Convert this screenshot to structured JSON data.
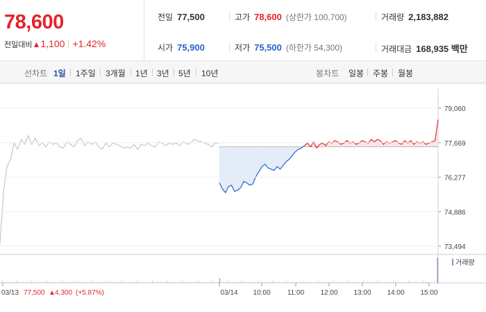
{
  "quote": {
    "price": "78,600",
    "compare_label": "전일대비",
    "change_arrow": "▲",
    "change": "1,100",
    "change_pct": "+1.42%"
  },
  "info": {
    "prev": {
      "label": "전일",
      "value": "77,500"
    },
    "high": {
      "label": "고가",
      "value": "78,600",
      "sub": "(상한가 100,700)"
    },
    "volume": {
      "label": "거래량",
      "value": "2,183,882"
    },
    "open": {
      "label": "시가",
      "value": "75,900"
    },
    "low": {
      "label": "저가",
      "value": "75,500",
      "sub": "(하한가 54,300)"
    },
    "amount": {
      "label": "거래대금",
      "value": "168,935 백만"
    }
  },
  "tabs": {
    "line_label": "선차트",
    "line": [
      "1일",
      "1주일",
      "3개월",
      "1년",
      "3년",
      "5년",
      "10년"
    ],
    "line_active": "1일",
    "candle_label": "봉차트",
    "candle": [
      "일봉",
      "주봉",
      "월봉"
    ]
  },
  "colors": {
    "up": "#e3242b",
    "down": "#2b63c9",
    "prev_day": "#bdbdbd",
    "fill_down": "#e3ecf8",
    "fill_up": "#fbe6e6"
  },
  "chart_data": {
    "type": "line",
    "ylim": [
      73494,
      79060
    ],
    "y_ticks": [
      "79,060",
      "77,669",
      "76,277",
      "74,886",
      "73,494"
    ],
    "baseline": 77500,
    "x_ticks": [
      "03/14",
      "10:00",
      "11:00",
      "12:00",
      "13:00",
      "14:00",
      "15:00"
    ],
    "legend": "거래량",
    "prev_day_label": "03/13",
    "prev_day_summary": {
      "close": "77,500",
      "arrow": "▲",
      "change": "4,300",
      "change_pct": "(+5.87%)"
    },
    "series": [
      {
        "segment": "prev_day",
        "values": [
          73600,
          75700,
          76700,
          77000,
          77650,
          77400,
          77800,
          77600,
          77950,
          77600,
          77850,
          77550,
          77650,
          77500,
          77700,
          77600,
          77650,
          77500,
          77450,
          77700,
          77600,
          77500,
          77750,
          77850,
          77550,
          77700,
          77600,
          77700,
          77500,
          77400,
          77650,
          77500,
          77650,
          77600,
          77550,
          77450,
          77500,
          77450,
          77600,
          77400,
          77600,
          77550,
          77650,
          77550,
          77500,
          77700,
          77650,
          77550,
          77650,
          77600,
          77650,
          77550,
          77700,
          77600,
          77650,
          77800,
          77750,
          77700,
          77650,
          77600,
          77500,
          77650,
          77650
        ]
      },
      {
        "segment": "today",
        "values": [
          76050,
          75800,
          75650,
          75900,
          75950,
          75700,
          75750,
          75850,
          76100,
          76050,
          75950,
          76000,
          76300,
          76500,
          76700,
          76800,
          76650,
          76600,
          76550,
          76700,
          76600,
          76750,
          76900,
          77000,
          77150,
          77300,
          77400,
          77450,
          77550,
          77650,
          77500,
          77700,
          77450,
          77600,
          77650,
          77550,
          77700,
          77650,
          77750,
          77700,
          77600,
          77650,
          77750,
          77650,
          77700,
          77600,
          77650,
          77750,
          77700,
          77650,
          77800,
          77700,
          77800,
          77750,
          77600,
          77700,
          77650,
          77700,
          77750,
          77650,
          77600,
          77750,
          77650,
          77750,
          77600,
          77700,
          77650,
          77700,
          77600,
          77650,
          77700,
          77750,
          78600
        ]
      }
    ]
  }
}
